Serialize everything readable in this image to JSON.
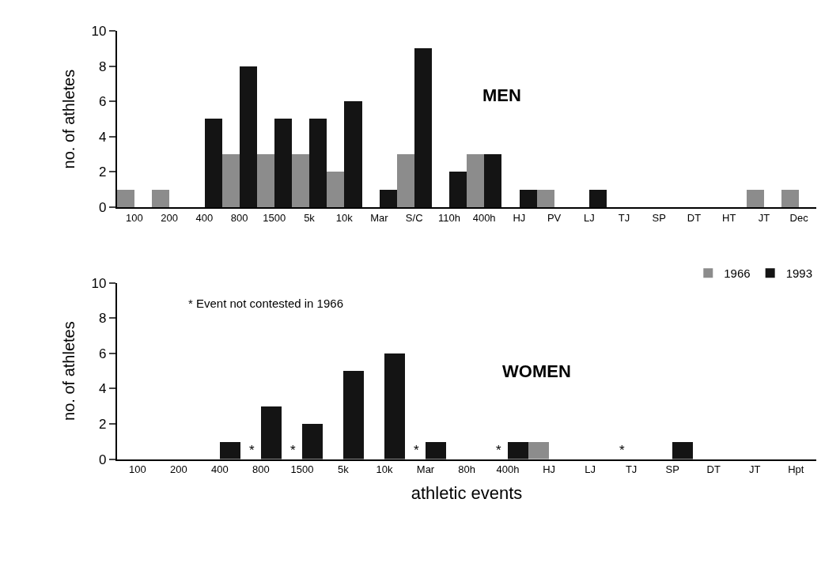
{
  "chart_data": [
    {
      "type": "bar",
      "title": "MEN",
      "ylabel": "no. of athletes",
      "categories": [
        "100",
        "200",
        "400",
        "800",
        "1500",
        "5k",
        "10k",
        "Mar",
        "S/C",
        "110h",
        "400h",
        "HJ",
        "PV",
        "LJ",
        "TJ",
        "SP",
        "DT",
        "HT",
        "JT",
        "Dec"
      ],
      "series": [
        {
          "name": "1966",
          "color": "#8c8c8c",
          "values": [
            1,
            1,
            0,
            3,
            3,
            3,
            2,
            0,
            3,
            0,
            3,
            0,
            1,
            0,
            0,
            0,
            0,
            0,
            1,
            1
          ]
        },
        {
          "name": "1993",
          "color": "#141414",
          "values": [
            0,
            0,
            5,
            8,
            5,
            5,
            6,
            1,
            9,
            2,
            3,
            1,
            0,
            1,
            0,
            0,
            0,
            0,
            0,
            0
          ]
        }
      ],
      "ylim": [
        0,
        10
      ],
      "yticks": [
        0,
        2,
        4,
        6,
        8,
        10
      ],
      "legend": "bottom right"
    },
    {
      "type": "bar",
      "title": "WOMEN",
      "ylabel": "no. of athletes",
      "xlabel": "athletic events",
      "categories": [
        "100",
        "200",
        "400",
        "800",
        "1500",
        "5k",
        "10k",
        "Mar",
        "80h",
        "400h",
        "HJ",
        "LJ",
        "TJ",
        "SP",
        "DT",
        "JT",
        "Hpt"
      ],
      "series": [
        {
          "name": "1966",
          "color": "#8c8c8c",
          "values": [
            0,
            0,
            0,
            null,
            null,
            0,
            0,
            null,
            0,
            null,
            1,
            0,
            null,
            0,
            0,
            0,
            0
          ]
        },
        {
          "name": "1993",
          "color": "#141414",
          "values": [
            0,
            0,
            1,
            3,
            2,
            5,
            6,
            1,
            0,
            1,
            0,
            0,
            0,
            1,
            0,
            0,
            0
          ]
        }
      ],
      "annotations": [
        "* Event not contested in 1966",
        {
          "text": "*",
          "x": "800",
          "y": 0
        },
        {
          "text": "*",
          "x": "1500",
          "y": 0
        },
        {
          "text": "*",
          "x": "Mar",
          "y": 0
        },
        {
          "text": "*",
          "x": "400h",
          "y": 0
        },
        {
          "text": "*",
          "x": "TJ",
          "y": 0
        }
      ],
      "ylim": [
        0,
        10
      ],
      "yticks": [
        0,
        2,
        4,
        6,
        8,
        10
      ]
    }
  ]
}
